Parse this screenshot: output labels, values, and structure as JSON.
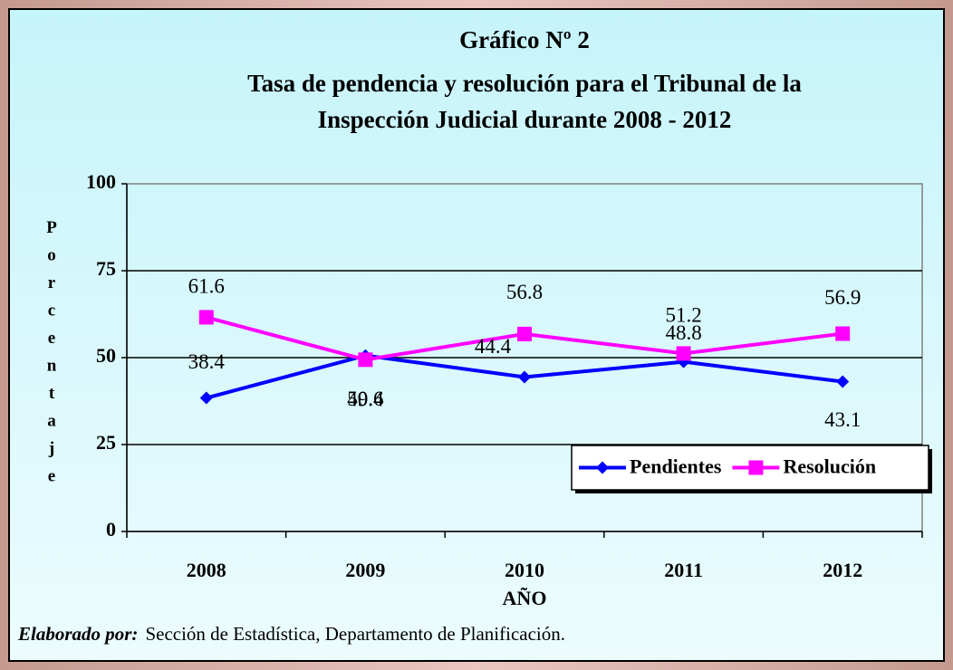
{
  "chart_data": {
    "type": "line",
    "title": [
      "Gráfico Nº 2",
      "Tasa de pendencia y resolución para el Tribunal de la",
      "Inspección Judicial durante 2008 - 2012"
    ],
    "categories": [
      "2008",
      "2009",
      "2010",
      "2011",
      "2012"
    ],
    "series": [
      {
        "name": "Pendientes",
        "color": "#0000ff",
        "marker": "diamond",
        "values": [
          38.4,
          50.6,
          44.4,
          48.8,
          43.1
        ]
      },
      {
        "name": "Resolución",
        "color": "#ff00ff",
        "marker": "square",
        "values": [
          61.6,
          49.4,
          56.8,
          51.2,
          56.9
        ]
      }
    ],
    "ylim": [
      0,
      100
    ],
    "yticks": [
      0,
      25,
      50,
      75,
      100
    ],
    "grid": true,
    "legend": "lower right",
    "ylabel": "Porcentaje",
    "xlabel": "AÑO",
    "source": {
      "label": "Elaborado por:",
      "text": "Sección de Estadística, Departamento de Planificación."
    }
  }
}
